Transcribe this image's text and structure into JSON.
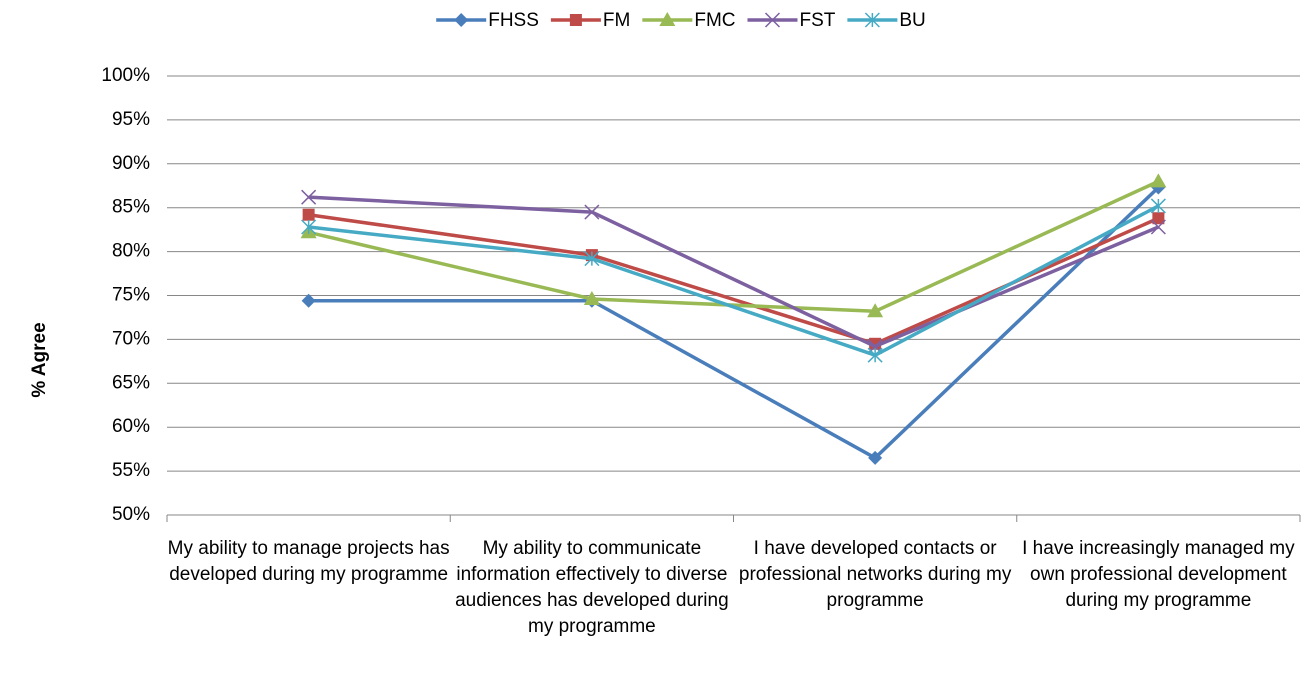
{
  "chart_data": {
    "type": "line",
    "y_label": "% Agree",
    "categories": [
      "My ability to manage projects has developed during my programme",
      "My ability to communicate information effectively to diverse audiences has developed during my programme",
      "I have developed contacts or professional networks during my programme",
      "I have increasingly managed my own professional development during my programme"
    ],
    "series": [
      {
        "name": "FHSS",
        "color": "#4a7ebb",
        "marker": "diamond",
        "values": [
          74.4,
          74.4,
          56.5,
          87.3
        ]
      },
      {
        "name": "FM",
        "color": "#be4b48",
        "marker": "square",
        "values": [
          84.2,
          79.6,
          69.5,
          83.8
        ]
      },
      {
        "name": "FMC",
        "color": "#98b954",
        "marker": "triangle",
        "values": [
          82.2,
          74.6,
          73.2,
          88.0
        ]
      },
      {
        "name": "FST",
        "color": "#7d60a0",
        "marker": "x",
        "values": [
          86.2,
          84.5,
          69.2,
          82.8
        ]
      },
      {
        "name": "BU",
        "color": "#46aac5",
        "marker": "star",
        "values": [
          82.8,
          79.2,
          68.2,
          85.2
        ]
      }
    ],
    "ylim": [
      50,
      100
    ],
    "yticks": [
      {
        "value": 50,
        "label": "50%"
      },
      {
        "value": 55,
        "label": "55%"
      },
      {
        "value": 60,
        "label": "60%"
      },
      {
        "value": 65,
        "label": "65%"
      },
      {
        "value": 70,
        "label": "70%"
      },
      {
        "value": 75,
        "label": "75%"
      },
      {
        "value": 80,
        "label": "80%"
      },
      {
        "value": 85,
        "label": "85%"
      },
      {
        "value": 90,
        "label": "90%"
      },
      {
        "value": 95,
        "label": "95%"
      },
      {
        "value": 100,
        "label": "100%"
      }
    ],
    "grid": true,
    "legend": "top"
  }
}
